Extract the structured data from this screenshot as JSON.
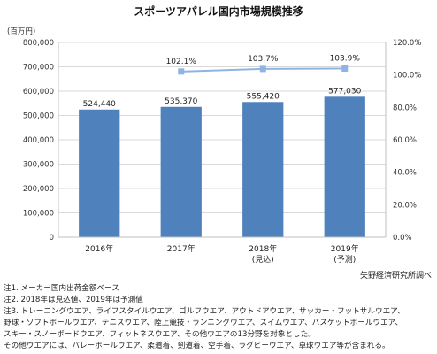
{
  "title": "スポーツアパレル国内市場規模推移",
  "source": "矢野経済研究所調べ",
  "notes": [
    "注1. メーカー国内出荷金額ベース",
    "注2. 2018年は見込値、2019年は予測値",
    "注3. トレーニングウエア、ライフスタイルウエア、ゴルフウエア、アウトドアウエア、サッカー・フットサルウエア、",
    "野球・ソフトボールウエア、テニスウエア、陸上競技・ランニングウエア、スイムウエア、バスケットボールウエア、",
    "スキー・スノーボードウエア、フィットネスウエア、その他ウエアの13分野を対象とした。",
    "その他ウエアには、バレーボールウエア、柔道着、剣道着、空手着、ラグビーウエア、卓球ウエア等が含まれる。"
  ],
  "chart_data": {
    "type": "bar",
    "title": "スポーツアパレル国内市場規模推移",
    "ylabel": "(百万円)",
    "ylim": [
      0,
      800000
    ],
    "yticks": [
      "0",
      "100,000",
      "200,000",
      "300,000",
      "400,000",
      "500,000",
      "600,000",
      "700,000",
      "800,000"
    ],
    "y2lim": [
      0,
      120
    ],
    "y2ticks": [
      "0.0%",
      "20.0%",
      "40.0%",
      "60.0%",
      "80.0%",
      "100.0%",
      "120.0%"
    ],
    "categories": [
      {
        "year": "2016年",
        "sub": ""
      },
      {
        "year": "2017年",
        "sub": ""
      },
      {
        "year": "2018年",
        "sub": "(見込)"
      },
      {
        "year": "2019年",
        "sub": "(予測)"
      }
    ],
    "series": [
      {
        "type": "bar",
        "values": [
          524440,
          535370,
          555420,
          577030
        ],
        "labels": [
          "524,440",
          "535,370",
          "555,420",
          "577,030"
        ],
        "color": "#4f81bd"
      },
      {
        "type": "line",
        "axis": "secondary",
        "values": [
          null,
          102.1,
          103.7,
          103.9
        ],
        "labels": [
          "",
          "102.1%",
          "103.7%",
          "103.9%"
        ],
        "color": "#8eb4e3"
      }
    ],
    "grid": true
  }
}
